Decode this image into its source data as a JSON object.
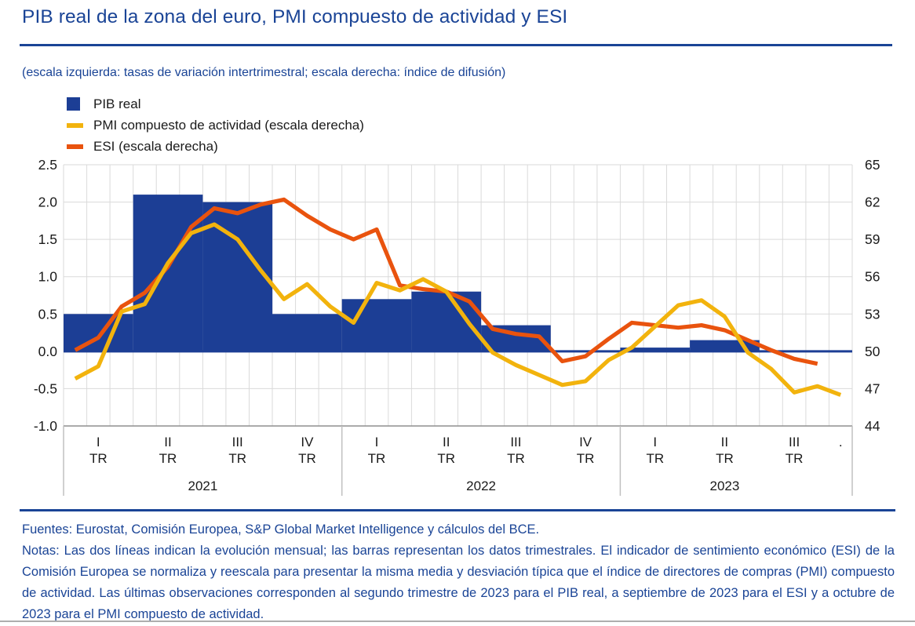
{
  "header": {
    "title": "PIB real de la zona del euro, PMI compuesto de actividad y ESI",
    "subtitle": "(escala izquierda: tasas de variación intertrimestral; escala derecha: índice de difusión)"
  },
  "legend": {
    "items": [
      {
        "label": "PIB real",
        "color": "#1c3e95",
        "swatch": "square"
      },
      {
        "label": "PMI compuesto de actividad (escala derecha)",
        "color": "#f2b30d",
        "swatch": "line"
      },
      {
        "label": "ESI (escala derecha)",
        "color": "#e9530e",
        "swatch": "line"
      }
    ]
  },
  "colors": {
    "accent_navy": "#1a4496",
    "gdp_bar_blue": "#1c3e95",
    "pmi_yellow": "#f2b30d",
    "esi_orange": "#e9530e"
  },
  "chart_data": {
    "type": "bar+line",
    "title": "PIB real de la zona del euro, PMI compuesto de actividad y ESI",
    "months_axis": {
      "total_months": 34,
      "start": "2021-01",
      "end": "2023-10"
    },
    "left_axis": {
      "label": "tasas de variación intertrimestral",
      "min": -1.0,
      "max": 2.5,
      "tick_labels": [
        "2.5",
        "2.0",
        "1.5",
        "1.0",
        "0.5",
        "0.0",
        "-0.5",
        "-1.0"
      ],
      "tick_values": [
        2.5,
        2.0,
        1.5,
        1.0,
        0.5,
        0.0,
        -0.5,
        -1.0
      ]
    },
    "right_axis": {
      "label": "índice de difusión",
      "min": 44,
      "max": 65,
      "tick_labels": [
        "65",
        "62",
        "59",
        "56",
        "53",
        "50",
        "47",
        "44"
      ],
      "tick_values": [
        65,
        62,
        59,
        56,
        53,
        50,
        47,
        44
      ]
    },
    "x_axis": {
      "quarter_labels": [
        "I",
        "II",
        "III",
        "IV",
        "I",
        "II",
        "III",
        "IV",
        "I",
        "II",
        "III"
      ],
      "quarter_unit": "TR",
      "partial_quarter_label": ".",
      "years": [
        {
          "label": "2021",
          "start_month": 0,
          "end_month": 12
        },
        {
          "label": "2022",
          "start_month": 12,
          "end_month": 24
        },
        {
          "label": "2023",
          "start_month": 24,
          "end_month": 33
        }
      ],
      "separators_at_months": [
        0,
        12,
        24,
        34
      ]
    },
    "grid": true,
    "legend_position": "top-left",
    "zero_line": {
      "value": 0.0,
      "color": "#1c3e95"
    },
    "series": [
      {
        "name": "PIB real",
        "type": "bar",
        "axis": "left",
        "color": "#1c3e95",
        "frequency": "quarterly",
        "quarters": [
          "2021-T1",
          "2021-T2",
          "2021-T3",
          "2021-T4",
          "2022-T1",
          "2022-T2",
          "2022-T3",
          "2022-T4",
          "2023-T1",
          "2023-T2"
        ],
        "values": [
          0.5,
          2.1,
          2.0,
          0.5,
          0.7,
          0.8,
          0.35,
          0.0,
          0.05,
          0.15
        ]
      },
      {
        "name": "ESI (escala derecha)",
        "type": "line",
        "axis": "right",
        "color": "#e9530e",
        "frequency": "monthly",
        "last_observation": "2023-09",
        "values": [
          50.1,
          51.1,
          53.6,
          54.7,
          56.8,
          60.0,
          61.5,
          61.1,
          61.8,
          62.2,
          60.9,
          59.8,
          59.0,
          59.8,
          55.3,
          55.0,
          54.8,
          54.0,
          51.8,
          51.4,
          51.2,
          49.2,
          49.6,
          51.0,
          52.3,
          52.1,
          51.9,
          52.1,
          51.7,
          50.9,
          50.1,
          49.4,
          49.0
        ]
      },
      {
        "name": "PMI compuesto de actividad (escala derecha)",
        "type": "line",
        "axis": "right",
        "color": "#f2b30d",
        "frequency": "monthly",
        "last_observation": "2023-10",
        "values": [
          47.8,
          48.8,
          53.2,
          53.8,
          57.1,
          59.5,
          60.2,
          59.0,
          56.5,
          54.2,
          55.4,
          53.6,
          52.3,
          55.5,
          54.9,
          55.8,
          54.8,
          52.2,
          49.9,
          48.9,
          48.1,
          47.3,
          47.6,
          49.3,
          50.3,
          52.0,
          53.7,
          54.1,
          52.8,
          49.9,
          48.6,
          46.7,
          47.2,
          46.5
        ]
      }
    ]
  },
  "footer": {
    "sources": "Fuentes: Eurostat, Comisión Europea, S&P Global Market Intelligence y cálculos del BCE.",
    "notes": "Notas: Las dos líneas indican la evolución mensual; las barras representan los datos trimestrales. El indicador de sentimiento económico (ESI) de la Comisión Europea se normaliza y reescala para presentar la misma media y desviación típica que el índice de directores de compras (PMI) compuesto de actividad. Las últimas observaciones corresponden al segundo trimestre de 2023 para el PIB real, a septiembre de 2023 para el ESI y a octubre de 2023 para el PMI compuesto de actividad."
  }
}
